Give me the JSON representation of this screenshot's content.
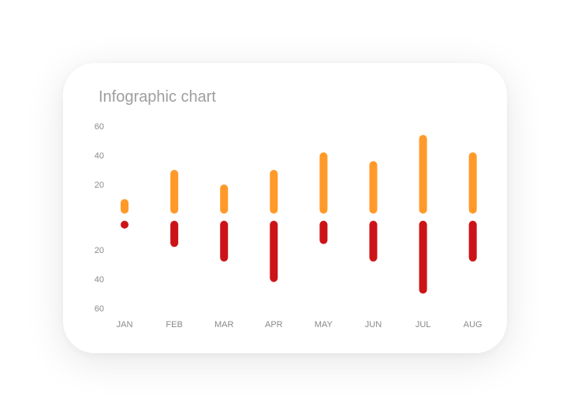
{
  "chart_data": {
    "type": "bar",
    "title": "Infographic chart",
    "categories": [
      "JAN",
      "FEB",
      "MAR",
      "APR",
      "MAY",
      "JUN",
      "JUL",
      "AUG"
    ],
    "series": [
      {
        "values": [
          10,
          30,
          20,
          30,
          42,
          36,
          54,
          42
        ]
      },
      {
        "values": [
          3,
          18,
          28,
          42,
          16,
          28,
          50,
          28
        ]
      }
    ],
    "upper_ticks": [
      60,
      40,
      20
    ],
    "lower_ticks": [
      20,
      40,
      60
    ],
    "ylim": [
      0,
      60
    ],
    "grid": false,
    "colors": {
      "upper": "#FF9A2A",
      "lower": "#CC1418",
      "label": "#8a8a8a",
      "title": "#9e9e9e"
    }
  }
}
